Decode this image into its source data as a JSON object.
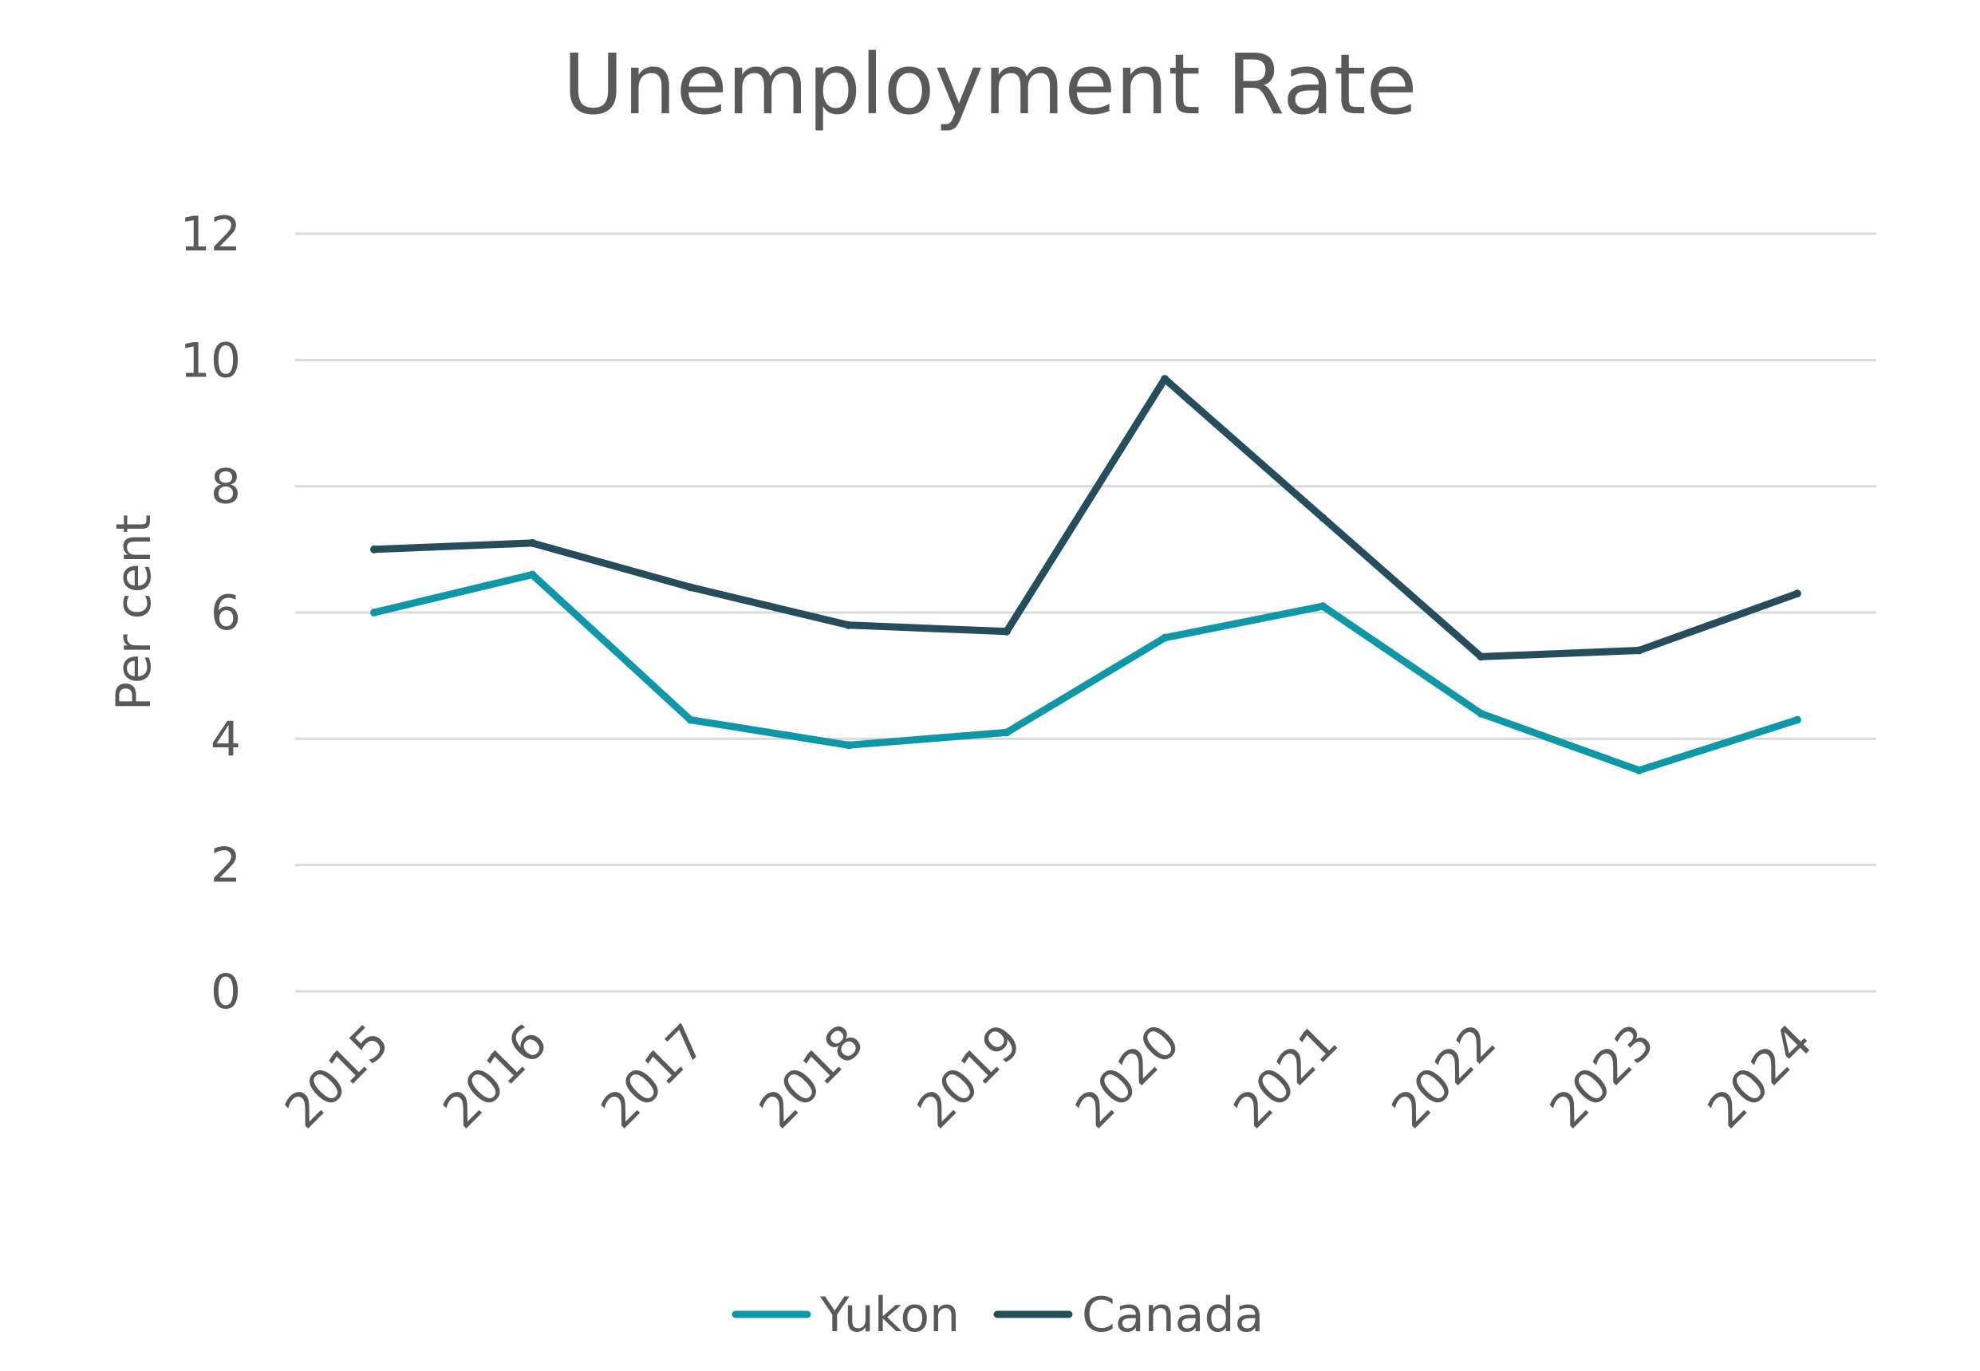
{
  "chart_data": {
    "type": "line",
    "title": "Unemployment Rate",
    "xlabel": "",
    "ylabel": "Per cent",
    "categories": [
      "2015",
      "2016",
      "2017",
      "2018",
      "2019",
      "2020",
      "2021",
      "2022",
      "2023",
      "2024"
    ],
    "series": [
      {
        "name": "Yukon",
        "color": "#0e97a6",
        "values": [
          6.0,
          6.6,
          4.3,
          3.9,
          4.1,
          5.6,
          6.1,
          4.4,
          3.5,
          4.3
        ]
      },
      {
        "name": "Canada",
        "color": "#264d5c",
        "values": [
          7.0,
          7.1,
          6.4,
          5.8,
          5.7,
          9.7,
          7.5,
          5.3,
          5.4,
          6.3
        ]
      }
    ],
    "ylim": [
      0,
      12
    ],
    "yticks": [
      "0",
      "2",
      "4",
      "6",
      "8",
      "10",
      "12"
    ],
    "grid": true,
    "legend": "bottom",
    "colors": {
      "gridline": "#d9d9d9",
      "text": "#595959"
    }
  }
}
